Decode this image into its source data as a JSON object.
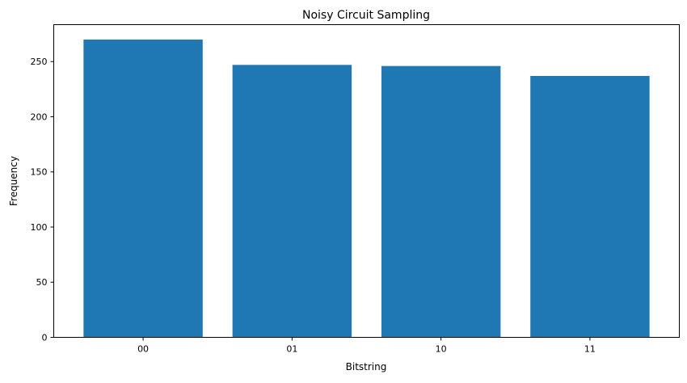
{
  "chart_data": {
    "type": "bar",
    "title": "Noisy Circuit Sampling",
    "xlabel": "Bitstring",
    "ylabel": "Frequency",
    "categories": [
      "00",
      "01",
      "10",
      "11"
    ],
    "values": [
      270,
      247,
      246,
      237
    ],
    "ylim": [
      0,
      283.5
    ],
    "yticks": [
      0,
      50,
      100,
      150,
      200,
      250
    ],
    "grid": false,
    "bar_color": "#1f77b4"
  }
}
